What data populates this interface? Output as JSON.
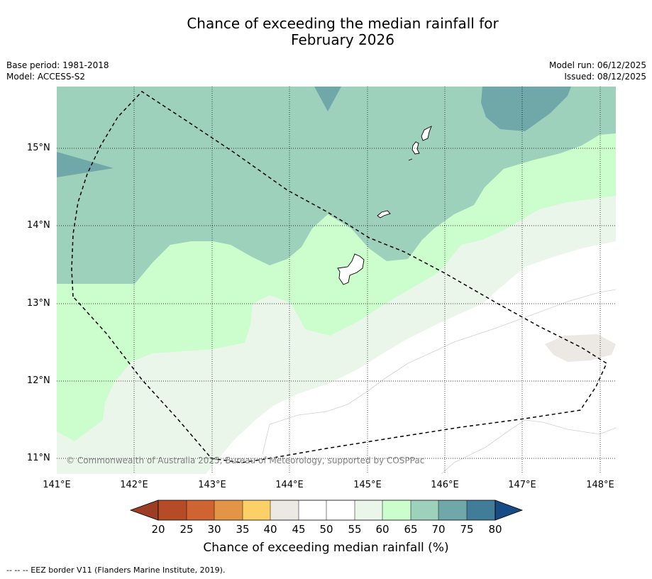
{
  "title_line1": "Chance of exceeding the median rainfall for",
  "title_line2": "February 2026",
  "base_period": "Base period: 1981-2018",
  "model": "Model: ACCESS-S2",
  "model_run": "Model run: 06/12/2025",
  "issued": "Issued: 08/12/2025",
  "copyright": "© Commonwealth of Australia 2025, Bureau of Meteorology, supported by COSPPac",
  "colorbar_title": "Chance of exceeding median rainfall (%)",
  "footer": "--  --  -- EEZ border V11 (Flanders Marine Institute, 2019).",
  "lat_labels": [
    "15°N",
    "14°N",
    "13°N",
    "12°N",
    "11°N"
  ],
  "lon_labels": [
    "141°E",
    "142°E",
    "143°E",
    "144°E",
    "145°E",
    "146°E",
    "147°E",
    "148°E"
  ],
  "colorbar_ticks": [
    "20",
    "25",
    "30",
    "35",
    "40",
    "45",
    "50",
    "55",
    "60",
    "65",
    "70",
    "75",
    "80"
  ],
  "colors": {
    "c70_75": "#9ed1bc",
    "c75_80": "#70a7a8",
    "c60_65": "#ccfdcc",
    "c55_60": "#ebf6eb",
    "c50_55": "#ffffff",
    "c45_50": "#ffffff",
    "c40_45": "#ece9e4",
    "gt80": "#164b86",
    "c_lt20": "#9c3e25",
    "c20_25": "#b64b28",
    "c25_30": "#cd6431",
    "c30_35": "#e29447",
    "c35_40": "#fdd067",
    "c80": "#417c99"
  }
}
